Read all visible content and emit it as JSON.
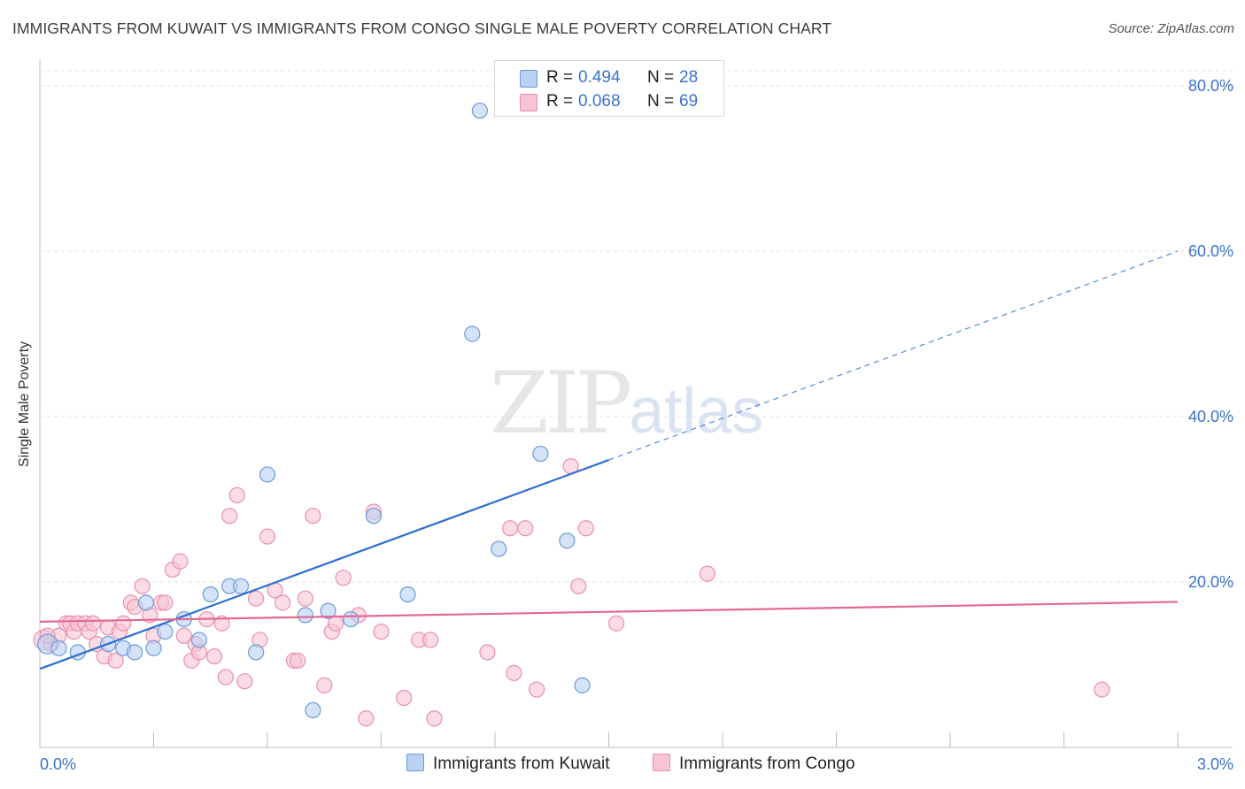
{
  "title": "IMMIGRANTS FROM KUWAIT VS IMMIGRANTS FROM CONGO SINGLE MALE POVERTY CORRELATION CHART",
  "source": "Source: ZipAtlas.com",
  "watermark": {
    "zip": "ZIP",
    "atlas": "atlas"
  },
  "legend": {
    "kuwait": {
      "r_label": "R =",
      "r_value": "0.494",
      "n_label": "N =",
      "n_value": "28"
    },
    "congo": {
      "r_label": "R =",
      "r_value": "0.068",
      "n_label": "N =",
      "n_value": "69"
    }
  },
  "bottom_legend": {
    "kuwait": "Immigrants from Kuwait",
    "congo": "Immigrants from Congo"
  },
  "colors": {
    "kuwait_fill": "#b9d1f3",
    "kuwait_stroke": "#6d9ad9",
    "kuwait_line": "#2a6fd1",
    "congo_fill": "#f8c4d4",
    "congo_stroke": "#e890ac",
    "congo_line": "#e26a93",
    "axis_text": "#3b73c9",
    "grid": "#e0e0e0"
  },
  "chart_data": {
    "type": "scatter",
    "title": "IMMIGRANTS FROM KUWAIT VS IMMIGRANTS FROM CONGO SINGLE MALE POVERTY CORRELATION CHART",
    "xlabel": "",
    "ylabel": "Single Male Poverty",
    "xlim": [
      0,
      3.0
    ],
    "ylim": [
      0,
      80
    ],
    "x_tick_labels": [
      "0.0%",
      "3.0%"
    ],
    "y_tick_labels": [
      "20.0%",
      "40.0%",
      "60.0%",
      "80.0%"
    ],
    "y_ticks": [
      20,
      40,
      60,
      80
    ],
    "series": [
      {
        "name": "Immigrants from Kuwait",
        "R": 0.494,
        "N": 28,
        "points": [
          [
            0.02,
            12.5
          ],
          [
            0.05,
            12.0
          ],
          [
            0.1,
            11.5
          ],
          [
            0.18,
            12.5
          ],
          [
            0.22,
            12.0
          ],
          [
            0.25,
            11.5
          ],
          [
            0.28,
            17.5
          ],
          [
            0.3,
            12.0
          ],
          [
            0.33,
            14.0
          ],
          [
            0.38,
            15.5
          ],
          [
            0.42,
            13.0
          ],
          [
            0.45,
            18.5
          ],
          [
            0.5,
            19.5
          ],
          [
            0.53,
            19.5
          ],
          [
            0.57,
            11.5
          ],
          [
            0.6,
            33.0
          ],
          [
            0.7,
            16.0
          ],
          [
            0.72,
            4.5
          ],
          [
            0.76,
            16.5
          ],
          [
            0.82,
            15.5
          ],
          [
            0.88,
            28.0
          ],
          [
            0.97,
            18.5
          ],
          [
            1.14,
            50.0
          ],
          [
            1.16,
            77.0
          ],
          [
            1.21,
            24.0
          ],
          [
            1.32,
            35.5
          ],
          [
            1.39,
            25.0
          ],
          [
            1.43,
            7.5
          ]
        ],
        "trend": {
          "x0": 0.0,
          "y0": 9.5,
          "x1": 3.0,
          "y1": 60.0,
          "solid_until_x": 1.5
        }
      },
      {
        "name": "Immigrants from Congo",
        "R": 0.068,
        "N": 69,
        "points": [
          [
            0.01,
            13.0
          ],
          [
            0.03,
            12.5
          ],
          [
            0.05,
            13.5
          ],
          [
            0.07,
            15.0
          ],
          [
            0.08,
            15.0
          ],
          [
            0.09,
            14.0
          ],
          [
            0.1,
            15.0
          ],
          [
            0.12,
            15.0
          ],
          [
            0.13,
            14.0
          ],
          [
            0.14,
            15.0
          ],
          [
            0.15,
            12.5
          ],
          [
            0.17,
            11.0
          ],
          [
            0.18,
            14.5
          ],
          [
            0.2,
            10.5
          ],
          [
            0.21,
            14.0
          ],
          [
            0.22,
            15.0
          ],
          [
            0.24,
            17.5
          ],
          [
            0.25,
            17.0
          ],
          [
            0.27,
            19.5
          ],
          [
            0.29,
            16.0
          ],
          [
            0.3,
            13.5
          ],
          [
            0.32,
            17.5
          ],
          [
            0.33,
            17.5
          ],
          [
            0.35,
            21.5
          ],
          [
            0.37,
            22.5
          ],
          [
            0.38,
            13.5
          ],
          [
            0.4,
            10.5
          ],
          [
            0.41,
            12.5
          ],
          [
            0.42,
            11.5
          ],
          [
            0.44,
            15.5
          ],
          [
            0.46,
            11.0
          ],
          [
            0.48,
            15.0
          ],
          [
            0.49,
            8.5
          ],
          [
            0.5,
            28.0
          ],
          [
            0.52,
            30.5
          ],
          [
            0.54,
            8.0
          ],
          [
            0.57,
            18.0
          ],
          [
            0.58,
            13.0
          ],
          [
            0.6,
            25.5
          ],
          [
            0.62,
            19.0
          ],
          [
            0.64,
            17.5
          ],
          [
            0.67,
            10.5
          ],
          [
            0.68,
            10.5
          ],
          [
            0.7,
            18.0
          ],
          [
            0.72,
            28.0
          ],
          [
            0.75,
            7.5
          ],
          [
            0.77,
            14.0
          ],
          [
            0.78,
            15.0
          ],
          [
            0.8,
            20.5
          ],
          [
            0.84,
            16.0
          ],
          [
            0.86,
            3.5
          ],
          [
            0.88,
            28.5
          ],
          [
            0.9,
            14.0
          ],
          [
            0.96,
            6.0
          ],
          [
            1.0,
            13.0
          ],
          [
            1.03,
            13.0
          ],
          [
            1.04,
            3.5
          ],
          [
            1.18,
            11.5
          ],
          [
            1.24,
            26.5
          ],
          [
            1.25,
            9.0
          ],
          [
            1.28,
            26.5
          ],
          [
            1.31,
            7.0
          ],
          [
            1.4,
            34.0
          ],
          [
            1.42,
            19.5
          ],
          [
            1.44,
            26.5
          ],
          [
            1.52,
            15.0
          ],
          [
            1.76,
            21.0
          ],
          [
            2.8,
            7.0
          ],
          [
            0.02,
            13.5
          ]
        ],
        "trend": {
          "x0": 0.0,
          "y0": 15.2,
          "x1": 3.0,
          "y1": 17.6
        }
      }
    ]
  }
}
